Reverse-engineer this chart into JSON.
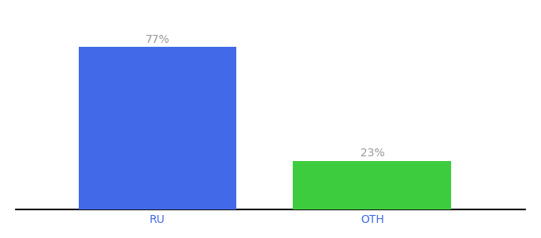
{
  "categories": [
    "RU",
    "OTH"
  ],
  "values": [
    77,
    23
  ],
  "bar_colors": [
    "#4169e8",
    "#3dcc3d"
  ],
  "label_color": "#999999",
  "xlabel_color": "#4169e8",
  "ylim": [
    0,
    88
  ],
  "bar_width": 0.28,
  "background_color": "#ffffff",
  "label_fontsize": 10,
  "tick_fontsize": 10
}
